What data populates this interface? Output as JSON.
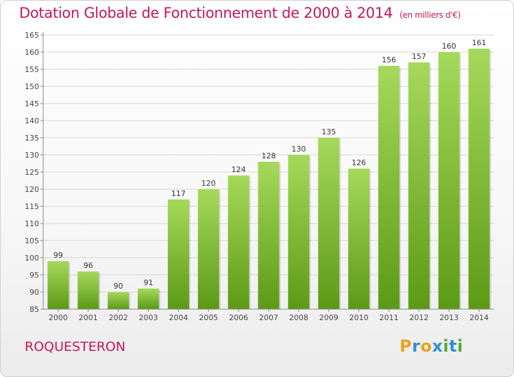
{
  "title": "Dotation Globale de Fonctionnement de 2000 à 2014",
  "subtitle": "(en milliers d'€)",
  "place": "ROQUESTERON",
  "logo": {
    "letters": [
      "P",
      "r",
      "o",
      "x",
      "i",
      "t",
      "i"
    ],
    "colors": [
      "#e8a31c",
      "#2f8fd6",
      "#e8a31c",
      "#2f8fd6",
      "#5aa832",
      "#2f8fd6",
      "#5aa832"
    ]
  },
  "colors": {
    "title": "#c2185b",
    "bar_top": "#a6d95b",
    "bar_bottom": "#5c9a16",
    "grid": "#d6d6d6"
  },
  "chart_data": {
    "type": "bar",
    "categories": [
      "2000",
      "2001",
      "2002",
      "2003",
      "2004",
      "2005",
      "2006",
      "2007",
      "2008",
      "2009",
      "2010",
      "2011",
      "2012",
      "2013",
      "2014"
    ],
    "values": [
      99,
      96,
      90,
      91,
      117,
      120,
      124,
      128,
      130,
      135,
      126,
      156,
      157,
      160,
      161
    ],
    "ylim": [
      85,
      165
    ],
    "yticks": [
      85,
      90,
      95,
      100,
      105,
      110,
      115,
      120,
      125,
      130,
      135,
      140,
      145,
      150,
      155,
      160,
      165
    ],
    "grid": true
  }
}
